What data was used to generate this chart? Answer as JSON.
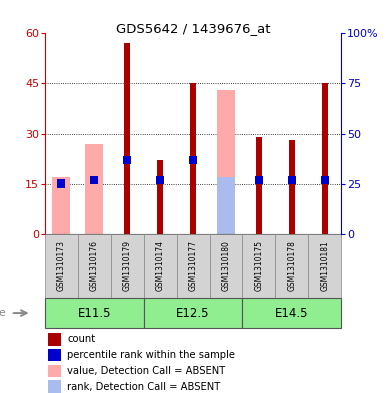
{
  "title": "GDS5642 / 1439676_at",
  "samples": [
    "GSM1310173",
    "GSM1310176",
    "GSM1310179",
    "GSM1310174",
    "GSM1310177",
    "GSM1310180",
    "GSM1310175",
    "GSM1310178",
    "GSM1310181"
  ],
  "age_groups": [
    {
      "label": "E11.5",
      "start": 0,
      "end": 3
    },
    {
      "label": "E12.5",
      "start": 3,
      "end": 6
    },
    {
      "label": "E14.5",
      "start": 6,
      "end": 9
    }
  ],
  "red_bars": [
    0,
    0,
    57,
    22,
    45,
    0,
    29,
    28,
    45
  ],
  "pink_bars": [
    17,
    27,
    0,
    0,
    0,
    43,
    0,
    0,
    0
  ],
  "blue_bars": [
    15,
    16,
    22,
    16,
    22,
    0,
    16,
    16,
    16
  ],
  "light_blue_bars": [
    0,
    0,
    0,
    0,
    0,
    17,
    0,
    0,
    0
  ],
  "ylim_left": [
    0,
    60
  ],
  "ylim_right": [
    0,
    100
  ],
  "yticks_left": [
    0,
    15,
    30,
    45,
    60
  ],
  "yticks_right": [
    0,
    25,
    50,
    75,
    100
  ],
  "ytick_labels_right": [
    "0",
    "25",
    "50",
    "75",
    "100%"
  ],
  "left_axis_color": "#cc0000",
  "right_axis_color": "#0000cc",
  "pink_color": "#ffaaaa",
  "light_blue_color": "#aabbee",
  "red_color": "#aa0000",
  "blue_color": "#0000cc",
  "age_bg_color": "#90ee90",
  "sample_bg_color": "#d3d3d3",
  "wide_bar_width": 0.55,
  "narrow_bar_width": 0.18,
  "blue_bar_height": 2.5
}
